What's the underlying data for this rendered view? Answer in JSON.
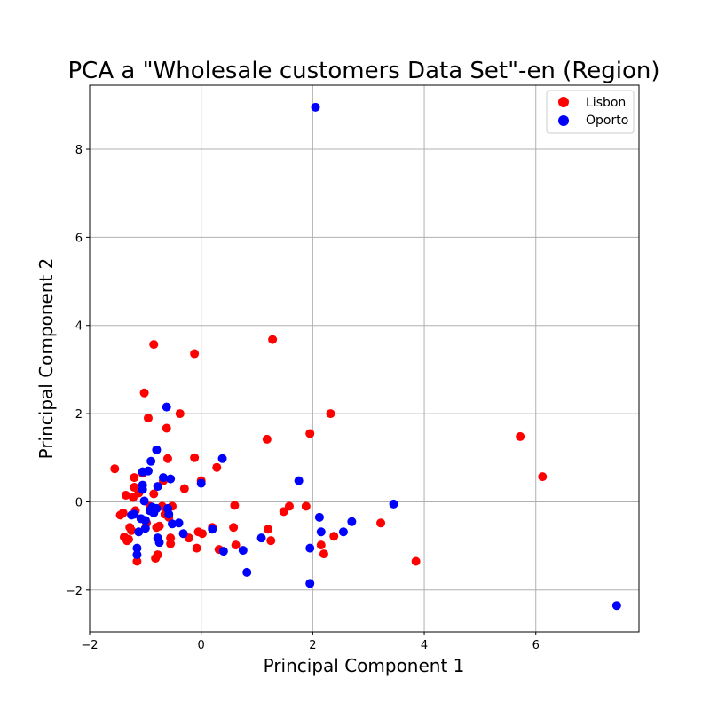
{
  "chart_data": {
    "type": "scatter",
    "title": "PCA a \"Wholesale customers Data Set\"-en (Region)",
    "xlabel": "Principal Component 1",
    "ylabel": "Principal Component 2",
    "xlim": [
      -2.0,
      7.85
    ],
    "ylim": [
      -2.95,
      9.45
    ],
    "x_ticks": [
      -2,
      0,
      2,
      4,
      6
    ],
    "y_ticks": [
      -2,
      0,
      2,
      4,
      6,
      8
    ],
    "x_tick_labels": [
      "−2",
      "0",
      "2",
      "4",
      "6"
    ],
    "y_tick_labels": [
      "−2",
      "0",
      "2",
      "4",
      "6",
      "8"
    ],
    "grid": true,
    "legend_position": "top-right",
    "series": [
      {
        "name": "Lisbon",
        "color": "#ff0000",
        "points": [
          [
            -1.55,
            0.75
          ],
          [
            -1.45,
            -0.3
          ],
          [
            -1.4,
            -0.25
          ],
          [
            -1.38,
            -0.8
          ],
          [
            -1.35,
            0.15
          ],
          [
            -1.33,
            -0.88
          ],
          [
            -1.3,
            -0.85
          ],
          [
            -1.28,
            -0.58
          ],
          [
            -1.25,
            -0.65
          ],
          [
            -1.22,
            0.1
          ],
          [
            -1.2,
            0.55
          ],
          [
            -1.2,
            0.33
          ],
          [
            -1.18,
            -0.2
          ],
          [
            -1.15,
            -1.35
          ],
          [
            -1.12,
            0.2
          ],
          [
            -1.05,
            0.65
          ],
          [
            -1.02,
            2.47
          ],
          [
            -0.98,
            -0.48
          ],
          [
            -0.95,
            1.9
          ],
          [
            -0.92,
            -0.1
          ],
          [
            -0.88,
            -0.2
          ],
          [
            -0.85,
            3.57
          ],
          [
            -0.85,
            0.18
          ],
          [
            -0.82,
            -1.28
          ],
          [
            -0.8,
            -0.58
          ],
          [
            -0.78,
            -1.2
          ],
          [
            -0.75,
            -0.55
          ],
          [
            -0.7,
            -0.1
          ],
          [
            -0.68,
            0.48
          ],
          [
            -0.65,
            -0.28
          ],
          [
            -0.62,
            1.67
          ],
          [
            -0.6,
            0.98
          ],
          [
            -0.58,
            -0.35
          ],
          [
            -0.55,
            -0.82
          ],
          [
            -0.55,
            -0.95
          ],
          [
            -0.52,
            -0.1
          ],
          [
            -0.38,
            2.0
          ],
          [
            -0.3,
            0.3
          ],
          [
            -0.22,
            -0.82
          ],
          [
            -0.12,
            3.36
          ],
          [
            -0.12,
            1.0
          ],
          [
            -0.08,
            -1.05
          ],
          [
            -0.05,
            -0.68
          ],
          [
            0.0,
            0.48
          ],
          [
            0.02,
            -0.72
          ],
          [
            0.2,
            -0.58
          ],
          [
            0.28,
            0.78
          ],
          [
            0.32,
            -1.08
          ],
          [
            0.58,
            -0.58
          ],
          [
            0.6,
            -0.08
          ],
          [
            0.62,
            -0.98
          ],
          [
            1.18,
            1.42
          ],
          [
            1.2,
            -0.62
          ],
          [
            1.25,
            -0.88
          ],
          [
            1.28,
            3.68
          ],
          [
            1.48,
            -0.22
          ],
          [
            1.58,
            -0.1
          ],
          [
            1.88,
            -0.1
          ],
          [
            1.95,
            1.55
          ],
          [
            2.15,
            -0.98
          ],
          [
            2.2,
            -1.18
          ],
          [
            2.32,
            2.0
          ],
          [
            2.38,
            -0.78
          ],
          [
            3.22,
            -0.48
          ],
          [
            3.85,
            -1.35
          ],
          [
            5.72,
            1.48
          ],
          [
            6.12,
            0.57
          ]
        ]
      },
      {
        "name": "Oporto",
        "color": "#0000ff",
        "points": [
          [
            -1.25,
            -0.3
          ],
          [
            -1.2,
            -0.28
          ],
          [
            -1.15,
            -1.05
          ],
          [
            -1.15,
            -1.2
          ],
          [
            -1.12,
            -0.68
          ],
          [
            -1.08,
            -0.38
          ],
          [
            -1.05,
            0.68
          ],
          [
            -1.05,
            0.38
          ],
          [
            -1.05,
            0.28
          ],
          [
            -1.02,
            0.02
          ],
          [
            -1.0,
            -0.42
          ],
          [
            -1.0,
            -0.6
          ],
          [
            -0.95,
            0.7
          ],
          [
            -0.92,
            -0.2
          ],
          [
            -0.9,
            0.92
          ],
          [
            -0.88,
            -0.12
          ],
          [
            -0.85,
            -0.25
          ],
          [
            -0.8,
            1.18
          ],
          [
            -0.8,
            -0.15
          ],
          [
            -0.78,
            0.35
          ],
          [
            -0.78,
            -0.82
          ],
          [
            -0.75,
            -0.92
          ],
          [
            -0.68,
            0.55
          ],
          [
            -0.62,
            2.15
          ],
          [
            -0.6,
            -0.15
          ],
          [
            -0.58,
            -0.28
          ],
          [
            -0.55,
            0.52
          ],
          [
            -0.52,
            -0.5
          ],
          [
            -0.4,
            -0.48
          ],
          [
            -0.32,
            -0.72
          ],
          [
            0.0,
            0.42
          ],
          [
            0.2,
            -0.62
          ],
          [
            0.38,
            0.98
          ],
          [
            0.4,
            -1.12
          ],
          [
            0.75,
            -1.1
          ],
          [
            0.82,
            -1.6
          ],
          [
            1.08,
            -0.82
          ],
          [
            1.75,
            0.48
          ],
          [
            1.95,
            -1.05
          ],
          [
            1.95,
            -1.85
          ],
          [
            2.05,
            8.95
          ],
          [
            2.12,
            -0.35
          ],
          [
            2.15,
            -0.68
          ],
          [
            2.55,
            -0.68
          ],
          [
            2.7,
            -0.45
          ],
          [
            3.45,
            -0.05
          ],
          [
            7.45,
            -2.35
          ]
        ]
      }
    ]
  }
}
